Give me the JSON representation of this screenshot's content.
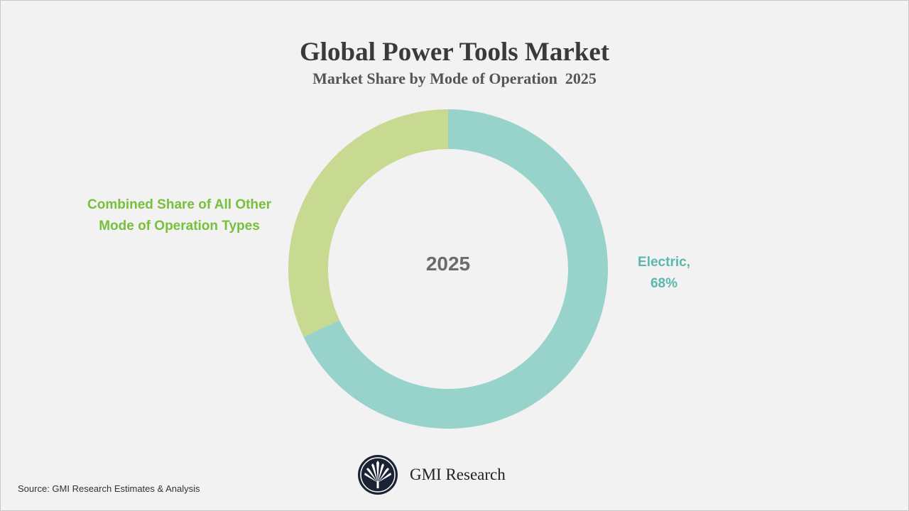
{
  "chart_data": {
    "type": "pie",
    "donut": true,
    "title": "Global Power Tools Market",
    "subtitle": "Market Share by Mode of Operation  2025",
    "center_label": "2025",
    "start_angle": "12 o'clock, clockwise",
    "slices": [
      {
        "label": "Electric,",
        "value_label": "68%",
        "value": 68,
        "color": "#97d3cb",
        "label_color": "#5bb8ad"
      },
      {
        "label": "Combined Share of All Other Mode of Operation Types",
        "value": 32,
        "color": "#c8d991",
        "label_color": "#78bf3c"
      }
    ]
  },
  "footer": {
    "source": "Source: GMI Research Estimates & Analysis",
    "brand": "GMI Research"
  }
}
